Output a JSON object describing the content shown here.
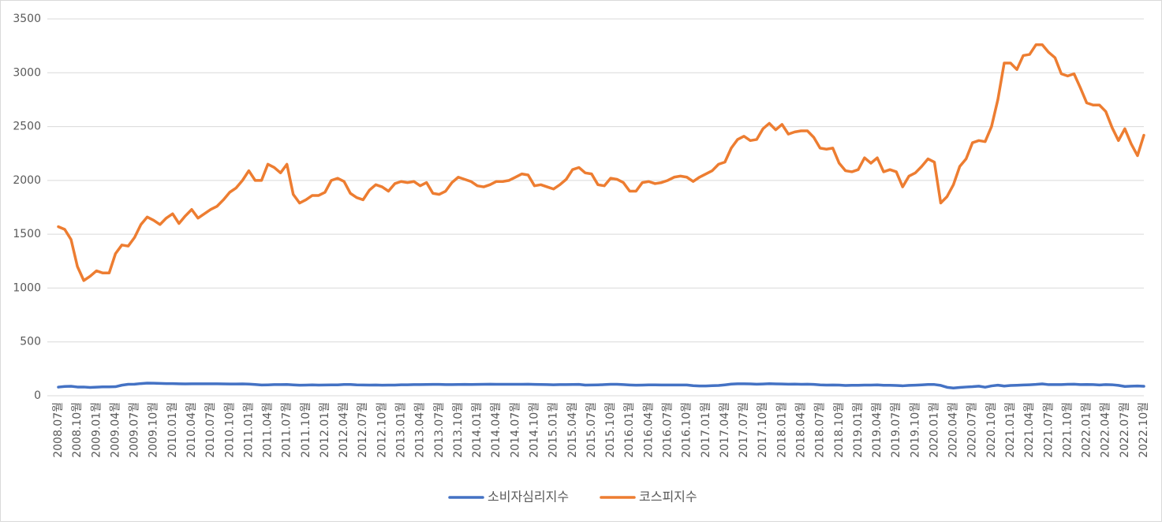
{
  "chart_data": {
    "type": "line",
    "categories": [
      "2008.07월",
      null,
      null,
      "2008.10월",
      null,
      null,
      "2009.01월",
      null,
      null,
      "2009.04월",
      null,
      null,
      "2009.07월",
      null,
      null,
      "2009.10월",
      null,
      null,
      "2010.01월",
      null,
      null,
      "2010.04월",
      null,
      null,
      "2010.07월",
      null,
      null,
      "2010.10월",
      null,
      null,
      "2011.01월",
      null,
      null,
      "2011.04월",
      null,
      null,
      "2011.07월",
      null,
      null,
      "2011.10월",
      null,
      null,
      "2012.01월",
      null,
      null,
      "2012.04월",
      null,
      null,
      "2012.07월",
      null,
      null,
      "2012.10월",
      null,
      null,
      "2013.01월",
      null,
      null,
      "2013.04월",
      null,
      null,
      "2013.07월",
      null,
      null,
      "2013.10월",
      null,
      null,
      "2014.01월",
      null,
      null,
      "2014.04월",
      null,
      null,
      "2014.07월",
      null,
      null,
      "2014.10월",
      null,
      null,
      "2015.01월",
      null,
      null,
      "2015.04월",
      null,
      null,
      "2015.07월",
      null,
      null,
      "2015.10월",
      null,
      null,
      "2016.01월",
      null,
      null,
      "2016.04월",
      null,
      null,
      "2016.07월",
      null,
      null,
      "2016.10월",
      null,
      null,
      "2017.01월",
      null,
      null,
      "2017.04월",
      null,
      null,
      "2017.07월",
      null,
      null,
      "2017.10월",
      null,
      null,
      "2018.01월",
      null,
      null,
      "2018.04월",
      null,
      null,
      "2018.07월",
      null,
      null,
      "2018.10월",
      null,
      null,
      "2019.01월",
      null,
      null,
      "2019.04월",
      null,
      null,
      "2019.07월",
      null,
      null,
      "2019.10월",
      null,
      null,
      "2020.01월",
      null,
      null,
      "2020.04월",
      null,
      null,
      "2020.07월",
      null,
      null,
      "2020.10월",
      null,
      null,
      "2021.01월",
      null,
      null,
      "2021.04월",
      null,
      null,
      "2021.07월",
      null,
      null,
      "2021.10월",
      null,
      null,
      "2022.01월",
      null,
      null,
      "2022.04월",
      null,
      null,
      "2022.07월",
      null,
      null,
      "2022.10월"
    ],
    "series": [
      {
        "name": "소비자심리지수",
        "color": "#4472c4",
        "values": [
          80,
          86,
          88,
          81,
          81,
          77,
          80,
          82,
          82,
          84,
          98,
          106,
          107,
          113,
          117,
          116,
          114,
          113,
          113,
          111,
          110,
          111,
          111,
          111,
          111,
          111,
          110,
          109,
          109,
          110,
          108,
          104,
          100,
          101,
          103,
          103,
          104,
          101,
          98,
          99,
          101,
          99,
          100,
          101,
          101,
          104,
          104,
          101,
          100,
          99,
          100,
          98,
          99,
          99,
          102,
          102,
          103,
          103,
          104,
          105,
          105,
          103,
          103,
          104,
          105,
          104,
          105,
          106,
          107,
          106,
          106,
          106,
          106,
          106,
          107,
          105,
          104,
          103,
          102,
          103,
          103,
          104,
          105,
          99,
          100,
          101,
          103,
          106,
          106,
          103,
          100,
          98,
          99,
          101,
          101,
          100,
          100,
          100,
          100,
          100,
          93,
          91,
          91,
          93,
          95,
          101,
          108,
          111,
          111,
          110,
          107,
          109,
          112,
          110,
          109,
          107,
          108,
          106,
          107,
          105,
          101,
          99,
          100,
          99,
          95,
          97,
          97,
          99,
          99,
          101,
          97,
          97,
          95,
          92,
          96,
          98,
          101,
          104,
          104,
          96,
          78,
          71,
          77,
          81,
          84,
          89,
          79,
          91,
          98,
          90,
          95,
          97,
          100,
          102,
          105,
          110,
          103,
          103,
          103,
          106,
          107,
          103,
          104,
          103,
          100,
          103,
          102,
          96,
          86,
          89,
          91,
          88
        ]
      },
      {
        "name": "코스피지수",
        "color": "#ed7d31",
        "values": [
          1570,
          1545,
          1450,
          1200,
          1070,
          1110,
          1160,
          1140,
          1140,
          1320,
          1400,
          1390,
          1470,
          1590,
          1660,
          1630,
          1590,
          1650,
          1690,
          1600,
          1670,
          1730,
          1650,
          1690,
          1730,
          1760,
          1820,
          1890,
          1930,
          2000,
          2090,
          2000,
          2000,
          2150,
          2120,
          2070,
          2150,
          1870,
          1790,
          1820,
          1860,
          1860,
          1890,
          2000,
          2020,
          1990,
          1880,
          1840,
          1820,
          1910,
          1960,
          1940,
          1900,
          1970,
          1990,
          1980,
          1990,
          1950,
          1980,
          1880,
          1870,
          1900,
          1980,
          2030,
          2010,
          1990,
          1950,
          1940,
          1960,
          1990,
          1990,
          2000,
          2030,
          2060,
          2050,
          1950,
          1960,
          1940,
          1920,
          1960,
          2010,
          2100,
          2120,
          2070,
          2060,
          1960,
          1950,
          2020,
          2010,
          1980,
          1900,
          1900,
          1980,
          1990,
          1970,
          1980,
          2000,
          2030,
          2040,
          2030,
          1990,
          2030,
          2060,
          2090,
          2150,
          2170,
          2300,
          2380,
          2410,
          2370,
          2380,
          2480,
          2530,
          2470,
          2520,
          2430,
          2450,
          2460,
          2460,
          2400,
          2300,
          2290,
          2300,
          2160,
          2090,
          2080,
          2100,
          2210,
          2160,
          2210,
          2080,
          2100,
          2080,
          1940,
          2040,
          2070,
          2130,
          2200,
          2170,
          1790,
          1850,
          1960,
          2130,
          2200,
          2350,
          2370,
          2360,
          2500,
          2750,
          3090,
          3090,
          3030,
          3160,
          3170,
          3260,
          3260,
          3190,
          3140,
          2990,
          2970,
          2990,
          2860,
          2720,
          2700,
          2700,
          2640,
          2490,
          2370,
          2480,
          2340,
          2230,
          2420
        ]
      }
    ],
    "ylim": [
      0,
      3500
    ],
    "yticks": [
      0,
      500,
      1000,
      1500,
      2000,
      2500,
      3000,
      3500
    ],
    "grid": true,
    "legend": "bottom"
  }
}
